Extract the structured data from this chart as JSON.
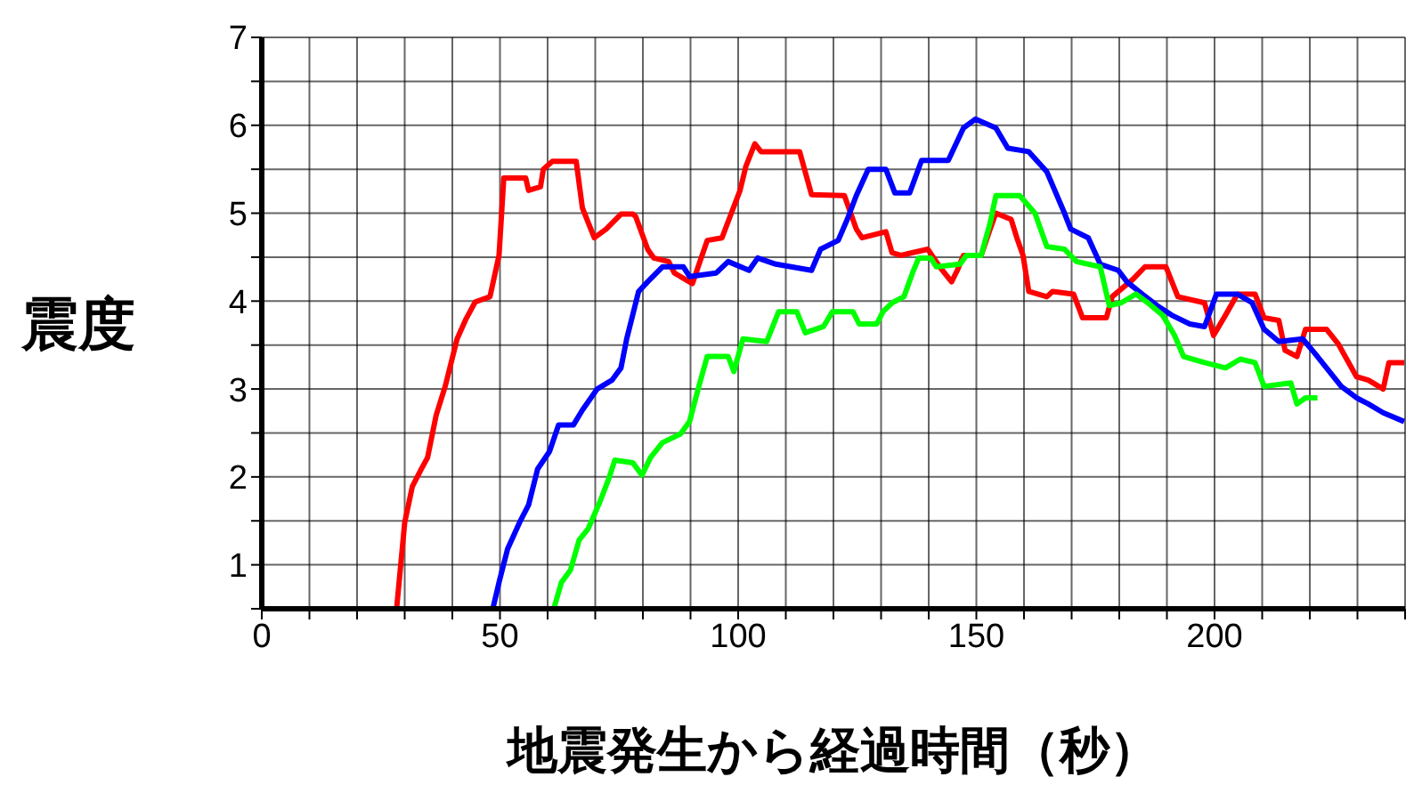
{
  "chart_data": {
    "type": "line",
    "xlabel": "地震発生から経過時間（秒）",
    "ylabel": "震度",
    "xlim": [
      0,
      240
    ],
    "ylim": [
      0.5,
      7
    ],
    "xticks": [
      0,
      {
        "value": 10,
        "label": null
      },
      {
        "value": 20,
        "label": null
      },
      {
        "value": 30,
        "label": null
      },
      {
        "value": 40,
        "label": null
      },
      50,
      {
        "value": 60,
        "label": null
      },
      {
        "value": 70,
        "label": null
      },
      {
        "value": 80,
        "label": null
      },
      {
        "value": 90,
        "label": null
      },
      100,
      {
        "value": 110,
        "label": null
      },
      {
        "value": 120,
        "label": null
      },
      {
        "value": 130,
        "label": null
      },
      {
        "value": 140,
        "label": null
      },
      150,
      {
        "value": 160,
        "label": null
      },
      {
        "value": 170,
        "label": null
      },
      {
        "value": 180,
        "label": null
      },
      {
        "value": 190,
        "label": null
      },
      200,
      {
        "value": 210,
        "label": null
      },
      {
        "value": 220,
        "label": null
      },
      {
        "value": 230,
        "label": null
      },
      {
        "value": 240,
        "label": null
      }
    ],
    "yticks": [
      {
        "value": 0.5,
        "label": null
      },
      1,
      {
        "value": 1.5,
        "label": null
      },
      2,
      {
        "value": 2.5,
        "label": null
      },
      3,
      {
        "value": 3.5,
        "label": null
      },
      4,
      {
        "value": 4.5,
        "label": null
      },
      5,
      {
        "value": 5.5,
        "label": null
      },
      6,
      {
        "value": 6.5,
        "label": null
      },
      7
    ],
    "grid": true,
    "legend": false,
    "marker": "none",
    "line_style": "solid",
    "series": [
      {
        "color": "#ff0000",
        "x": [
          28.3,
          30,
          31.6,
          33.5,
          34.8,
          36.6,
          38.5,
          41,
          42.9,
          44.8,
          47.9,
          49.8,
          50.8,
          55.4,
          56,
          58.5,
          59.1,
          61,
          66,
          67.3,
          69.8,
          72.3,
          75.4,
          77.9,
          78.5,
          81,
          82.3,
          85.4,
          86.6,
          90.4,
          91.6,
          93.5,
          96.6,
          98.5,
          100.4,
          101.6,
          103.5,
          104.8,
          112.9,
          115.4,
          122.3,
          124.8,
          126,
          131,
          132.3,
          134.1,
          139.8,
          142.3,
          144.8,
          146,
          147.3,
          151,
          152.9,
          154.1,
          157.3,
          158.5,
          159.8,
          161,
          164.8,
          166,
          170.4,
          172.3,
          177.3,
          178.5,
          182.9,
          185.4,
          189.8,
          192.3,
          197.9,
          199.8,
          202.3,
          204.8,
          208.5,
          210.4,
          213.5,
          214.8,
          217.3,
          219.1,
          223.5,
          226,
          229.8,
          232.3,
          235.4,
          236.6,
          239.8
        ],
        "values": [
          0.5,
          1.48,
          1.89,
          2.09,
          2.22,
          2.7,
          3.03,
          3.57,
          3.8,
          3.99,
          4.05,
          4.52,
          5.4,
          5.4,
          5.26,
          5.3,
          5.5,
          5.59,
          5.59,
          5.06,
          4.72,
          4.82,
          4.99,
          4.99,
          4.96,
          4.59,
          4.49,
          4.45,
          4.32,
          4.2,
          4.39,
          4.69,
          4.72,
          4.99,
          5.26,
          5.53,
          5.79,
          5.7,
          5.7,
          5.21,
          5.2,
          4.82,
          4.72,
          4.79,
          4.55,
          4.52,
          4.59,
          4.39,
          4.22,
          4.35,
          4.52,
          4.52,
          4.82,
          5.0,
          4.93,
          4.72,
          4.52,
          4.11,
          4.05,
          4.11,
          4.08,
          3.81,
          3.81,
          4.05,
          4.25,
          4.39,
          4.39,
          4.05,
          3.98,
          3.61,
          3.84,
          4.08,
          4.08,
          3.81,
          3.78,
          3.44,
          3.37,
          3.68,
          3.68,
          3.51,
          3.14,
          3.1,
          3.0,
          3.3,
          3.3
        ]
      },
      {
        "color": "#0000ff",
        "x": [
          48.5,
          49.8,
          51.6,
          54.1,
          56,
          57.9,
          60.4,
          62.3,
          65.4,
          67.3,
          69.1,
          70.4,
          73.5,
          75.4,
          76.6,
          79.1,
          81,
          84.1,
          88.5,
          89.8,
          95.4,
          97.9,
          102.3,
          104.1,
          107.9,
          115.4,
          117.3,
          121,
          122.9,
          124.8,
          127.3,
          131,
          132.9,
          136,
          138.5,
          144.1,
          147.3,
          149.8,
          154.1,
          156.6,
          161,
          164.8,
          168.5,
          169.8,
          173.5,
          176,
          179.8,
          181.6,
          184.8,
          187.9,
          191,
          194.8,
          197.9,
          200.4,
          204.8,
          207.9,
          210.4,
          213.5,
          218.5,
          221,
          224.1,
          226.6,
          229.8,
          232.3,
          235.4,
          239.8
        ],
        "values": [
          0.5,
          0.8,
          1.18,
          1.48,
          1.68,
          2.09,
          2.29,
          2.59,
          2.59,
          2.76,
          2.9,
          3.0,
          3.1,
          3.24,
          3.57,
          4.11,
          4.22,
          4.39,
          4.39,
          4.28,
          4.32,
          4.45,
          4.35,
          4.49,
          4.42,
          4.35,
          4.59,
          4.69,
          4.93,
          5.2,
          5.5,
          5.5,
          5.23,
          5.23,
          5.6,
          5.6,
          5.97,
          6.07,
          5.97,
          5.74,
          5.7,
          5.47,
          5.0,
          4.82,
          4.72,
          4.42,
          4.35,
          4.22,
          4.08,
          3.95,
          3.84,
          3.74,
          3.71,
          4.08,
          4.08,
          3.98,
          3.68,
          3.54,
          3.57,
          3.41,
          3.2,
          3.03,
          2.9,
          2.83,
          2.73,
          2.63
        ]
      },
      {
        "color": "#00ff00",
        "x": [
          61.3,
          62.9,
          64.8,
          66.6,
          68.5,
          71,
          72.9,
          74.1,
          77.9,
          79.8,
          81.6,
          84.1,
          87.9,
          89.8,
          91.6,
          93.5,
          97.9,
          99.1,
          101,
          106,
          108.5,
          112.3,
          114.1,
          117.9,
          119.8,
          124.1,
          125.4,
          129.1,
          130.4,
          132.3,
          134.8,
          136.6,
          137.9,
          140.4,
          141.6,
          146.6,
          147.9,
          151,
          152.9,
          154.1,
          159.1,
          162.3,
          164.8,
          168.5,
          171,
          176,
          177.9,
          180.4,
          183.5,
          186,
          189.1,
          191.6,
          193.5,
          197.9,
          202.3,
          205.4,
          208.5,
          210.4,
          216,
          217.3,
          219.1,
          221.6
        ],
        "values": [
          0.5,
          0.8,
          0.94,
          1.28,
          1.41,
          1.72,
          1.99,
          2.19,
          2.16,
          2.02,
          2.22,
          2.39,
          2.49,
          2.63,
          3.0,
          3.37,
          3.37,
          3.2,
          3.57,
          3.54,
          3.88,
          3.88,
          3.64,
          3.71,
          3.88,
          3.88,
          3.74,
          3.74,
          3.88,
          3.98,
          4.05,
          4.32,
          4.49,
          4.49,
          4.39,
          4.42,
          4.52,
          4.52,
          4.89,
          5.2,
          5.2,
          5.0,
          4.62,
          4.59,
          4.45,
          4.39,
          3.95,
          3.98,
          4.08,
          3.98,
          3.84,
          3.61,
          3.37,
          3.3,
          3.24,
          3.34,
          3.3,
          3.03,
          3.07,
          2.83,
          2.9,
          2.9
        ]
      }
    ]
  }
}
